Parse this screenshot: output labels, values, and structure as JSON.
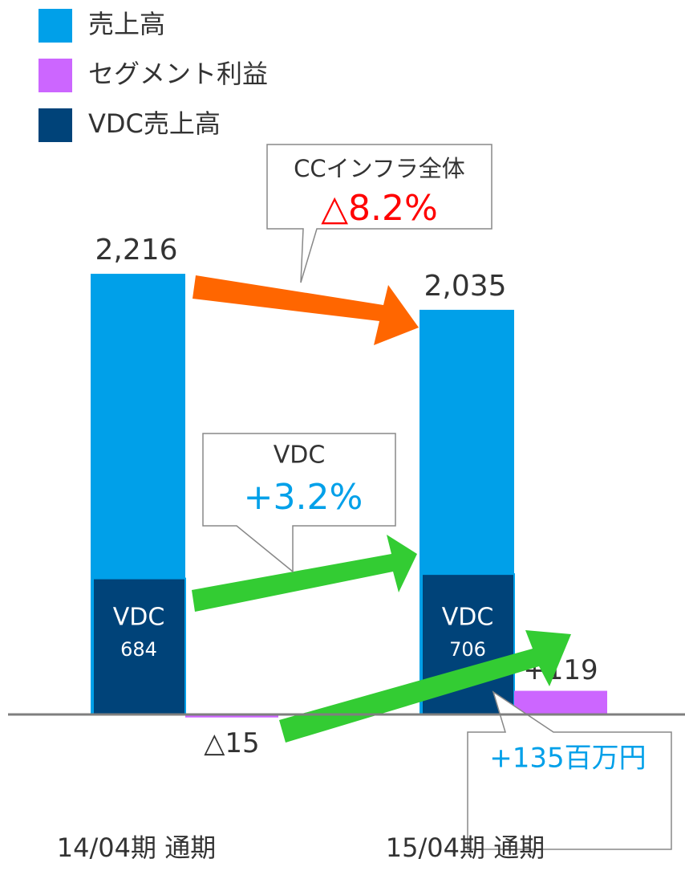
{
  "chart_data": {
    "type": "bar",
    "categories": [
      "14/04期 通期",
      "15/04期 通期"
    ],
    "series": [
      {
        "name": "売上高",
        "color": "#00a0e9",
        "values": [
          2216,
          2035
        ],
        "value_labels": [
          "2,216",
          "2,035"
        ]
      },
      {
        "name": "セグメント利益",
        "color": "#cc66ff",
        "values": [
          -15,
          119
        ],
        "value_labels": [
          "△15",
          "+119"
        ]
      },
      {
        "name": "VDC売上高",
        "color": "#004379",
        "values": [
          684,
          706
        ],
        "inner_label": "VDC"
      }
    ],
    "ylim": [
      -140,
      2400
    ],
    "annotations": [
      {
        "text": "CCインフラ全体",
        "value": "△8.2%"
      },
      {
        "text": "VDC",
        "value": "+3.2%"
      },
      {
        "text": "+135百万円"
      }
    ]
  }
}
